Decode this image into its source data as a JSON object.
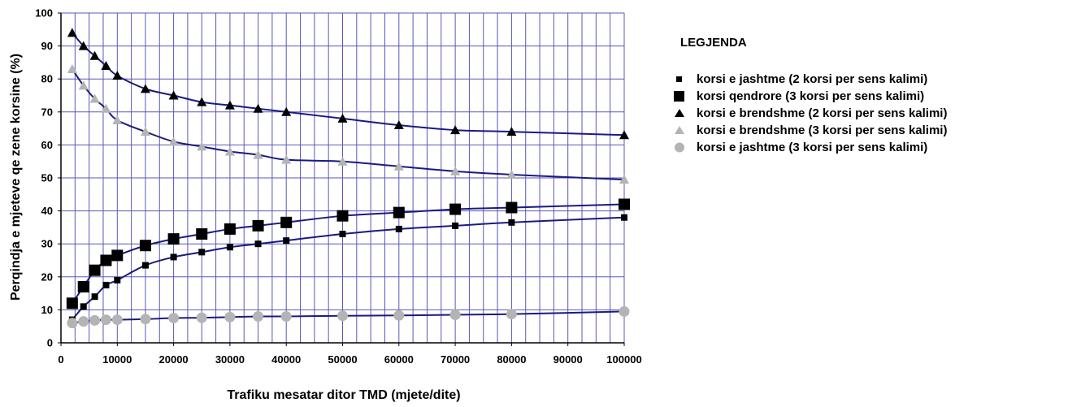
{
  "chart_data": {
    "type": "line",
    "title": "",
    "xlabel": "Trafiku mesatar ditor TMD (mjete/dite)",
    "ylabel": "Perqindja e mjeteve qe zene korsine (%)",
    "xlim": [
      0,
      100000
    ],
    "ylim": [
      0,
      100
    ],
    "x_ticks": [
      0,
      10000,
      20000,
      30000,
      40000,
      50000,
      60000,
      70000,
      80000,
      90000,
      100000
    ],
    "y_ticks": [
      0,
      10,
      20,
      30,
      40,
      50,
      60,
      70,
      80,
      90,
      100
    ],
    "grid": true,
    "line_color": "#1a1a80",
    "grid_color": "#5858b8",
    "legend_title": "LEGJENDA",
    "legend_position": "right",
    "series": [
      {
        "name": "korsi e jashtme (2 korsi per sens kalimi)",
        "marker": "square-small",
        "color": "#000000",
        "x": [
          2000,
          4000,
          6000,
          8000,
          10000,
          15000,
          20000,
          25000,
          30000,
          35000,
          40000,
          50000,
          60000,
          70000,
          80000,
          100000
        ],
        "y": [
          7,
          11,
          14,
          17.5,
          19,
          23.5,
          26,
          27.5,
          29,
          30,
          31,
          33,
          34.5,
          35.5,
          36.5,
          38
        ]
      },
      {
        "name": "korsi qendrore (3 korsi per sens kalimi)",
        "marker": "square-large",
        "color": "#000000",
        "x": [
          2000,
          4000,
          6000,
          8000,
          10000,
          15000,
          20000,
          25000,
          30000,
          35000,
          40000,
          50000,
          60000,
          70000,
          80000,
          100000
        ],
        "y": [
          12,
          17,
          22,
          25,
          26.5,
          29.5,
          31.5,
          33,
          34.5,
          35.5,
          36.5,
          38.5,
          39.5,
          40.5,
          41,
          42
        ]
      },
      {
        "name": "korsi e brendshme (2 korsi per sens kalimi)",
        "marker": "triangle",
        "color": "#000000",
        "x": [
          2000,
          4000,
          6000,
          8000,
          10000,
          15000,
          20000,
          25000,
          30000,
          35000,
          40000,
          50000,
          60000,
          70000,
          80000,
          100000
        ],
        "y": [
          94,
          90,
          87,
          84,
          81,
          77,
          75,
          73,
          72,
          71,
          70,
          68,
          66,
          64.5,
          64,
          63
        ]
      },
      {
        "name": "korsi e brendshme (3 korsi per sens kalimi)",
        "marker": "triangle",
        "color": "#b4b4b4",
        "x": [
          2000,
          4000,
          6000,
          8000,
          10000,
          15000,
          20000,
          25000,
          30000,
          35000,
          40000,
          50000,
          60000,
          70000,
          80000,
          100000
        ],
        "y": [
          83,
          78,
          74,
          71,
          67.5,
          64,
          61,
          59.5,
          58,
          57,
          55.5,
          55,
          53.5,
          52,
          51,
          49.5
        ]
      },
      {
        "name": "korsi e jashtme (3 korsi per sens kalimi)",
        "marker": "circle",
        "color": "#b4b4b4",
        "x": [
          2000,
          4000,
          6000,
          8000,
          10000,
          15000,
          20000,
          25000,
          30000,
          35000,
          40000,
          50000,
          60000,
          70000,
          80000,
          100000
        ],
        "y": [
          6,
          6.5,
          6.8,
          7,
          7,
          7.2,
          7.5,
          7.6,
          7.8,
          8,
          8,
          8.2,
          8.3,
          8.5,
          8.7,
          9.5
        ]
      }
    ]
  }
}
